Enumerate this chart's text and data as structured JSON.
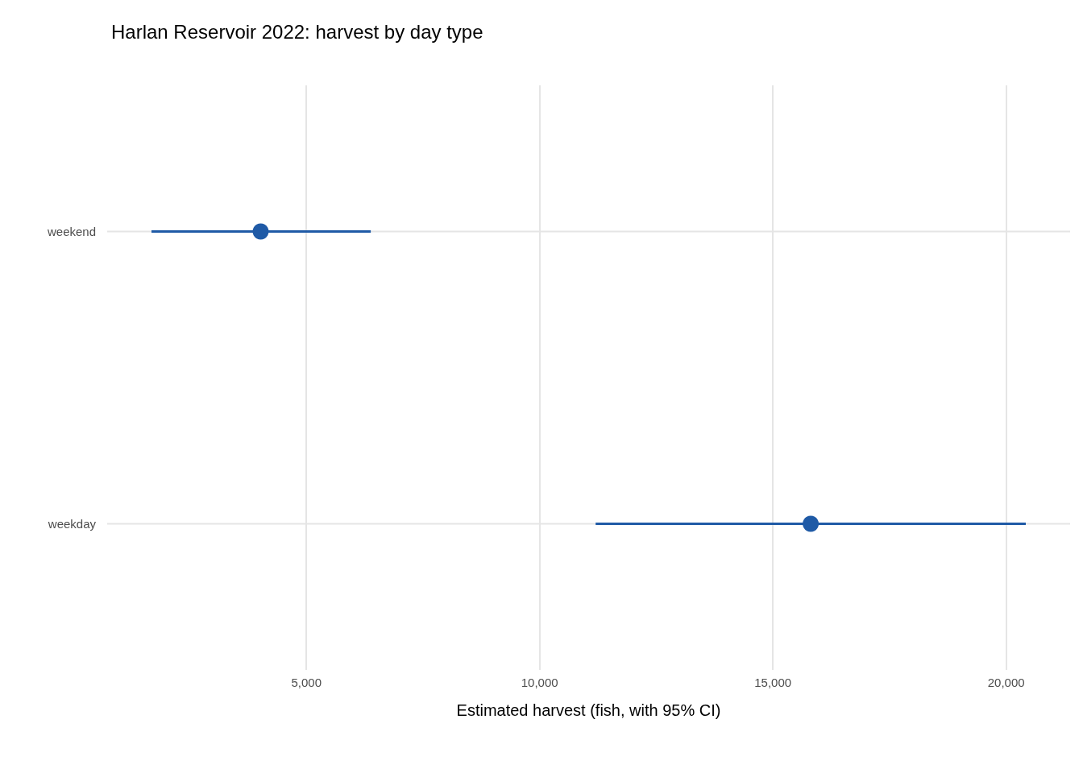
{
  "chart_data": {
    "type": "scatter",
    "orientation": "horizontal",
    "title": "Harlan Reservoir 2022: harvest by day type",
    "xlabel": "Estimated harvest (fish, with 95% CI)",
    "categories": [
      "weekend",
      "weekday"
    ],
    "series": [
      {
        "color": "#1f5aa6",
        "values": [
          4020,
          15810
        ],
        "errors": [
          [
            1680,
            6380
          ],
          [
            11200,
            20420
          ]
        ]
      }
    ],
    "xlim": [
      730,
      21370
    ],
    "xticks": [
      {
        "value": 5000,
        "label": "5,000"
      },
      {
        "value": 10000,
        "label": "10,000"
      },
      {
        "value": 15000,
        "label": "15,000"
      },
      {
        "value": 20000,
        "label": "20,000"
      }
    ],
    "grid": true,
    "marker": "circle"
  }
}
